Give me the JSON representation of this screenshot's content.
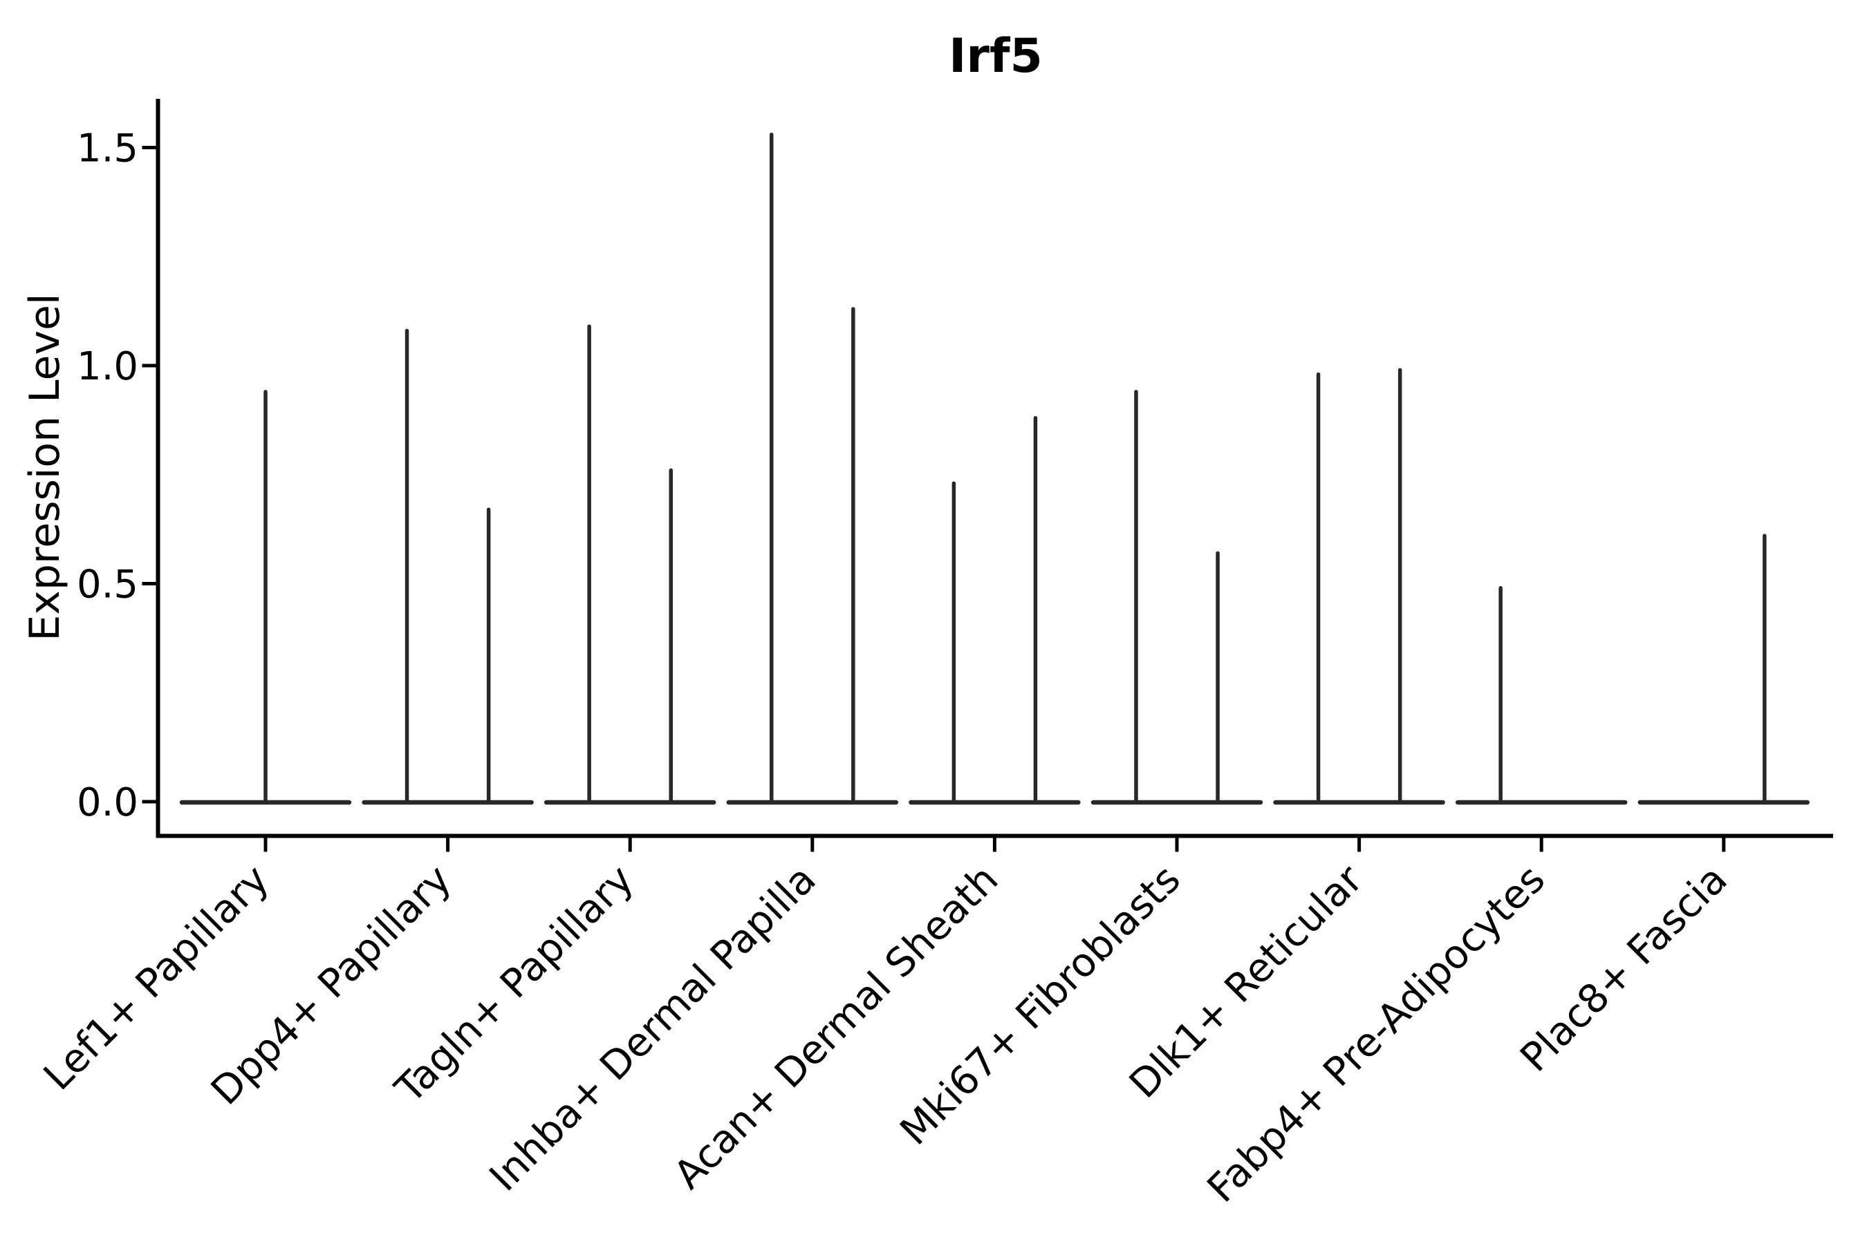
{
  "chart_data": {
    "type": "violin",
    "title": "Irf5",
    "xlabel": "",
    "ylabel": "Expression Level",
    "grid": false,
    "legend": null,
    "background_color": "#ffffff",
    "colors": {
      "violin": "#282828",
      "axis": "#000000",
      "text": "#000000"
    },
    "ylim": [
      -0.08,
      1.61
    ],
    "ytick_values": [
      0.0,
      0.5,
      1.0,
      1.5
    ],
    "ytick_labels": [
      "0.0",
      "0.5",
      "1.0",
      "1.5"
    ],
    "categories": [
      "Lef1+ Papillary",
      "Dpp4+ Papillary",
      "Tagln+ Papillary",
      "Inhba+ Dermal Papilla",
      "Acan+ Dermal Sheath",
      "Mki67+ Fibroblasts",
      "Dlk1+ Reticular",
      "Fabp4+ Pre-Adipocytes",
      "Plac8+ Fascia"
    ],
    "violin_body_halfwidth_slots": 0.459,
    "spike_offset_slots": 0.224,
    "violins": [
      {
        "category": "Lef1+ Papillary",
        "baseline": 0.0,
        "spikes": [
          {
            "offset": 0.0,
            "max": 0.94
          }
        ]
      },
      {
        "category": "Dpp4+ Papillary",
        "baseline": 0.0,
        "spikes": [
          {
            "offset": -0.224,
            "max": 1.08
          },
          {
            "offset": 0.224,
            "max": 0.67
          }
        ]
      },
      {
        "category": "Tagln+ Papillary",
        "baseline": 0.0,
        "spikes": [
          {
            "offset": -0.224,
            "max": 1.09
          },
          {
            "offset": 0.224,
            "max": 0.76
          }
        ]
      },
      {
        "category": "Inhba+ Dermal Papilla",
        "baseline": 0.0,
        "spikes": [
          {
            "offset": -0.224,
            "max": 1.53
          },
          {
            "offset": 0.224,
            "max": 1.13
          }
        ]
      },
      {
        "category": "Acan+ Dermal Sheath",
        "baseline": 0.0,
        "spikes": [
          {
            "offset": -0.224,
            "max": 0.73
          },
          {
            "offset": 0.224,
            "max": 0.88
          }
        ]
      },
      {
        "category": "Mki67+ Fibroblasts",
        "baseline": 0.0,
        "spikes": [
          {
            "offset": -0.224,
            "max": 0.94
          },
          {
            "offset": 0.224,
            "max": 0.57
          }
        ]
      },
      {
        "category": "Dlk1+ Reticular",
        "baseline": 0.0,
        "spikes": [
          {
            "offset": -0.224,
            "max": 0.98
          },
          {
            "offset": 0.224,
            "max": 0.99
          }
        ]
      },
      {
        "category": "Fabp4+ Pre-Adipocytes",
        "baseline": 0.0,
        "spikes": [
          {
            "offset": -0.224,
            "max": 0.49
          }
        ]
      },
      {
        "category": "Plac8+ Fascia",
        "baseline": 0.0,
        "spikes": [
          {
            "offset": 0.224,
            "max": 0.61
          }
        ]
      }
    ]
  }
}
